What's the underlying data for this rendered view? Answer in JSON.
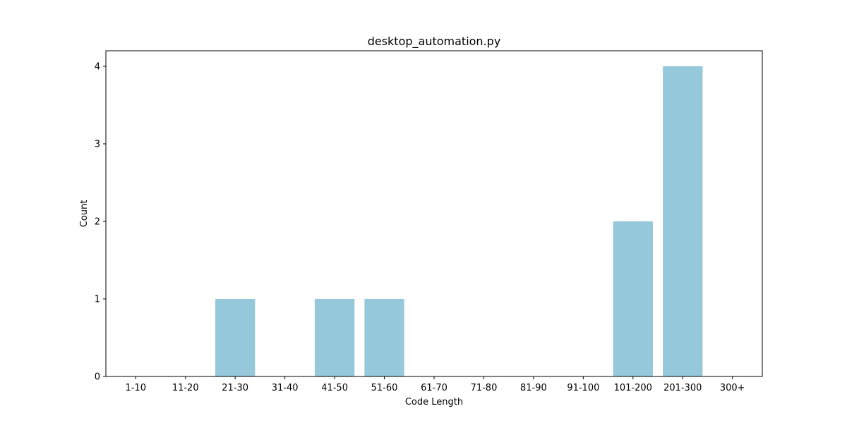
{
  "chart_data": {
    "type": "bar",
    "title": "desktop_automation.py",
    "xlabel": "Code Length",
    "ylabel": "Count",
    "categories": [
      "1-10",
      "11-20",
      "21-30",
      "31-40",
      "41-50",
      "51-60",
      "61-70",
      "71-80",
      "81-90",
      "91-100",
      "101-200",
      "201-300",
      "300+"
    ],
    "values": [
      0,
      0,
      1,
      0,
      1,
      1,
      0,
      0,
      0,
      0,
      2,
      4,
      0
    ],
    "yticks": [
      0,
      1,
      2,
      3,
      4
    ],
    "ylim": [
      0,
      4.2
    ],
    "bar_color": "#96c8dc",
    "grid": false,
    "legend": "none"
  }
}
